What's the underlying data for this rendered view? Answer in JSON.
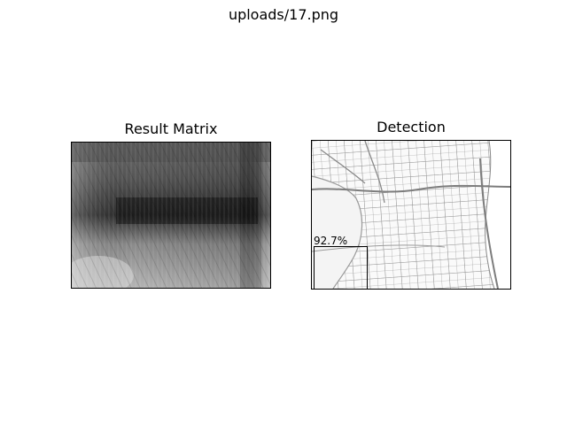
{
  "figure": {
    "title": "uploads/17.png"
  },
  "result_matrix": {
    "title": "Result Matrix"
  },
  "detection": {
    "title": "Detection",
    "confidence_label": "92.7%"
  }
}
